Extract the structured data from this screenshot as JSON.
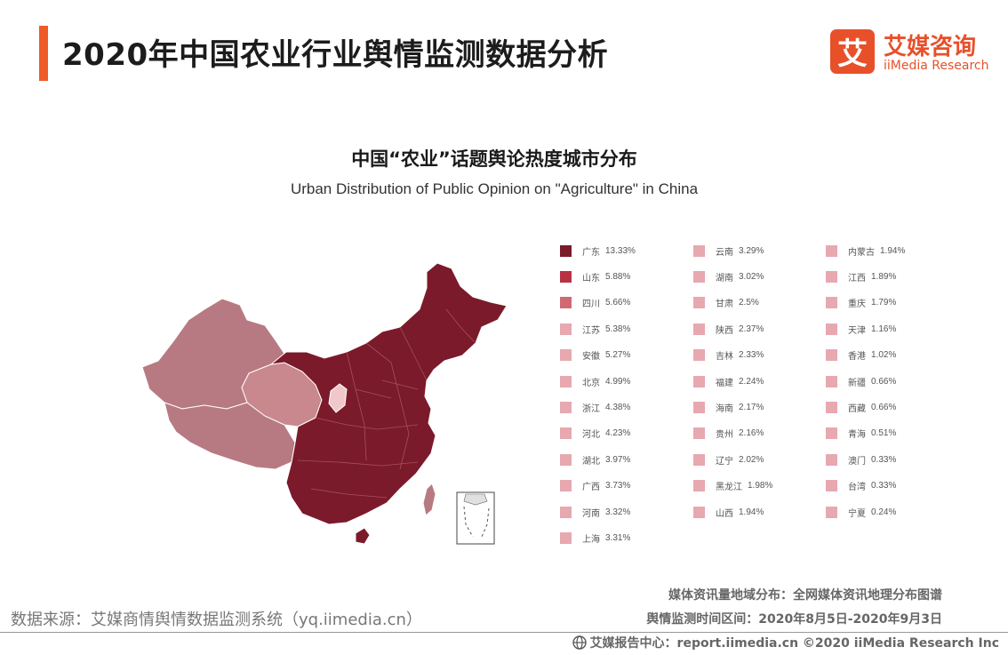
{
  "header": {
    "title": "2020年中国农业行业舆情监测数据分析",
    "accent_color": "#f05a28"
  },
  "logo": {
    "mark": "艾",
    "name": "艾媒咨询",
    "en": "iiMedia Research",
    "color": "#e8502a"
  },
  "chart_data": {
    "type": "map",
    "title": "中国“农业”话题舆论热度城市分布",
    "subtitle": "Urban Distribution of Public Opinion on \"Agriculture\" in China",
    "color_scale": [
      "#7b1a2a",
      "#b83244",
      "#d06a72",
      "#e8a8b0"
    ],
    "regions": [
      {
        "name": "广东",
        "label": "13.33%",
        "value": 13.33,
        "color": "#7b1a2a"
      },
      {
        "name": "山东",
        "label": "5.88%",
        "value": 5.88,
        "color": "#b83244"
      },
      {
        "name": "四川",
        "label": "5.66%",
        "value": 5.66,
        "color": "#d06a72"
      },
      {
        "name": "江苏",
        "label": "5.38%",
        "value": 5.38,
        "color": "#e8a8b0"
      },
      {
        "name": "安徽",
        "label": "5.27%",
        "value": 5.27,
        "color": "#e8a8b0"
      },
      {
        "name": "北京",
        "label": "4.99%",
        "value": 4.99,
        "color": "#e8a8b0"
      },
      {
        "name": "浙江",
        "label": "4.38%",
        "value": 4.38,
        "color": "#e8a8b0"
      },
      {
        "name": "河北",
        "label": "4.23%",
        "value": 4.23,
        "color": "#e8a8b0"
      },
      {
        "name": "湖北",
        "label": "3.97%",
        "value": 3.97,
        "color": "#e8a8b0"
      },
      {
        "name": "广西",
        "label": "3.73%",
        "value": 3.73,
        "color": "#e8a8b0"
      },
      {
        "name": "河南",
        "label": "3.32%",
        "value": 3.32,
        "color": "#e8a8b0"
      },
      {
        "name": "上海",
        "label": "3.31%",
        "value": 3.31,
        "color": "#e8a8b0"
      },
      {
        "name": "云南",
        "label": "3.29%",
        "value": 3.29,
        "color": "#e8a8b0"
      },
      {
        "name": "湖南",
        "label": "3.02%",
        "value": 3.02,
        "color": "#e8a8b0"
      },
      {
        "name": "甘肃",
        "label": "2.5%",
        "value": 2.5,
        "color": "#e8a8b0"
      },
      {
        "name": "陕西",
        "label": "2.37%",
        "value": 2.37,
        "color": "#e8a8b0"
      },
      {
        "name": "吉林",
        "label": "2.33%",
        "value": 2.33,
        "color": "#e8a8b0"
      },
      {
        "name": "福建",
        "label": "2.24%",
        "value": 2.24,
        "color": "#e8a8b0"
      },
      {
        "name": "海南",
        "label": "2.17%",
        "value": 2.17,
        "color": "#e8a8b0"
      },
      {
        "name": "贵州",
        "label": "2.16%",
        "value": 2.16,
        "color": "#e8a8b0"
      },
      {
        "name": "辽宁",
        "label": "2.02%",
        "value": 2.02,
        "color": "#e8a8b0"
      },
      {
        "name": "黑龙江",
        "label": "1.98%",
        "value": 1.98,
        "color": "#e8a8b0"
      },
      {
        "name": "山西",
        "label": "1.94%",
        "value": 1.94,
        "color": "#e8a8b0"
      },
      {
        "name": "内蒙古",
        "label": "1.94%",
        "value": 1.94,
        "color": "#e8a8b0"
      },
      {
        "name": "江西",
        "label": "1.89%",
        "value": 1.89,
        "color": "#e8a8b0"
      },
      {
        "name": "重庆",
        "label": "1.79%",
        "value": 1.79,
        "color": "#e8a8b0"
      },
      {
        "name": "天津",
        "label": "1.16%",
        "value": 1.16,
        "color": "#e8a8b0"
      },
      {
        "name": "香港",
        "label": "1.02%",
        "value": 1.02,
        "color": "#e8a8b0"
      },
      {
        "name": "新疆",
        "label": "0.66%",
        "value": 0.66,
        "color": "#e8a8b0"
      },
      {
        "name": "西藏",
        "label": "0.66%",
        "value": 0.66,
        "color": "#e8a8b0"
      },
      {
        "name": "青海",
        "label": "0.51%",
        "value": 0.51,
        "color": "#e8a8b0"
      },
      {
        "name": "澳门",
        "label": "0.33%",
        "value": 0.33,
        "color": "#e8a8b0"
      },
      {
        "name": "台湾",
        "label": "0.33%",
        "value": 0.33,
        "color": "#e8a8b0"
      },
      {
        "name": "宁夏",
        "label": "0.24%",
        "value": 0.24,
        "color": "#e8a8b0"
      }
    ],
    "legend_position": "right"
  },
  "footer": {
    "source": "数据来源：艾媒商情舆情数据监测系统（yq.iimedia.cn）",
    "note_distribution": "媒体资讯量地域分布：全网媒体资讯地理分布图谱",
    "note_period": "舆情监测时间区间：2020年8月5日-2020年9月3日",
    "copyright": "艾媒报告中心：report.iimedia.cn  ©2020  iiMedia Research  Inc"
  }
}
